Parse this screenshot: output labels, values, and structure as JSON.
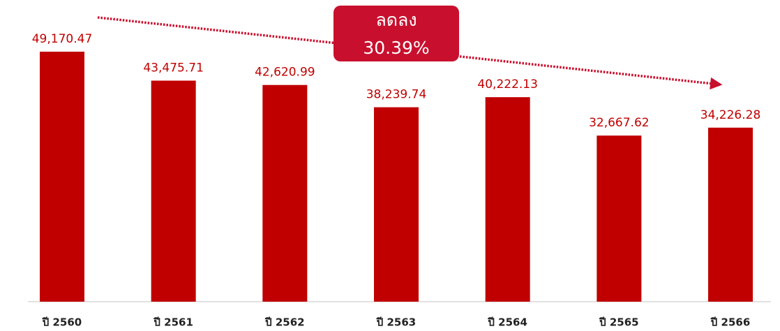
{
  "chart_data": {
    "type": "bar",
    "categories": [
      "ปี 2560",
      "ปี 2561",
      "ปี 2562",
      "ปี 2563",
      "ปี 2564",
      "ปี 2565",
      "ปี 2566"
    ],
    "values": [
      49170.47,
      43475.71,
      42620.99,
      38239.74,
      40222.13,
      32667.62,
      34226.28
    ],
    "value_labels": [
      "49,170.47",
      "43,475.71",
      "42,620.99",
      "38,239.74",
      "40,222.13",
      "32,667.62",
      "34,226.28"
    ],
    "color": "#c00000",
    "annotation": [
      "ลดลง",
      "30.39%"
    ]
  }
}
